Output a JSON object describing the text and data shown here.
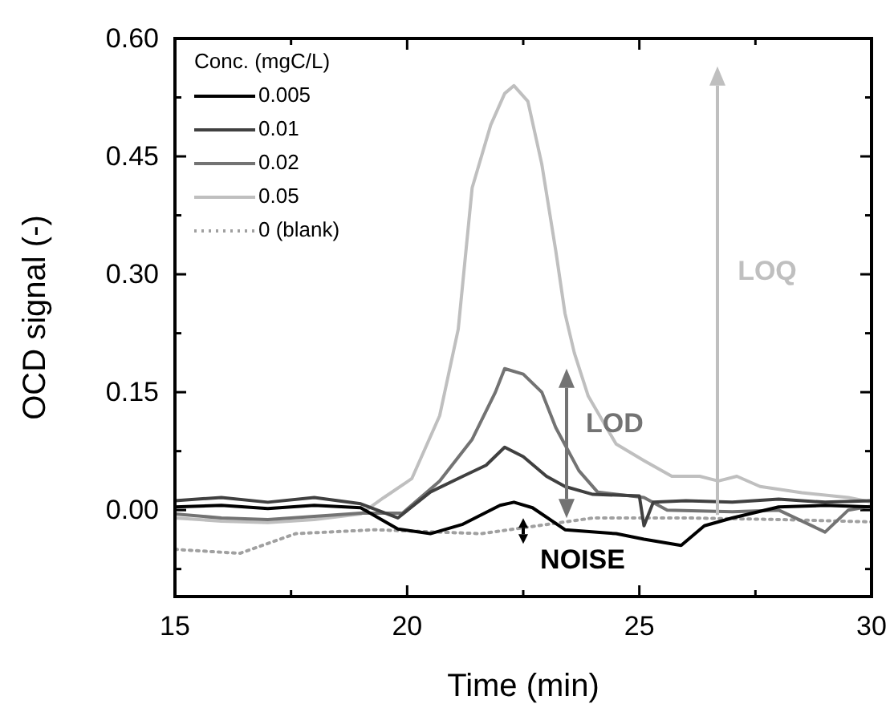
{
  "chart_data": {
    "type": "line",
    "xlabel": "Time (min)",
    "ylabel": "OCD signal (-)",
    "legend_title": "Conc. (mgC/L)",
    "legend": "top left",
    "xlim": [
      15,
      30
    ],
    "ylim": [
      -0.11,
      0.6
    ],
    "xticks": [
      15,
      {
        "value": 17.5,
        "label": null
      },
      20,
      {
        "value": 22.5,
        "label": null
      },
      25,
      {
        "value": 27.5,
        "label": null
      },
      30
    ],
    "yticks": [
      {
        "value": -0.075,
        "label": null
      },
      {
        "value": 0,
        "label": "0.00"
      },
      {
        "value": 0.075,
        "label": null
      },
      {
        "value": 0.15,
        "label": "0.15"
      },
      {
        "value": 0.225,
        "label": null
      },
      {
        "value": 0.3,
        "label": "0.30"
      },
      {
        "value": 0.375,
        "label": null
      },
      {
        "value": 0.45,
        "label": "0.45"
      },
      {
        "value": 0.525,
        "label": null
      },
      {
        "value": 0.6,
        "label": "0.60"
      }
    ],
    "grid": false,
    "series": [
      {
        "name": "0.005",
        "color": "#000000",
        "x": [
          15,
          16,
          17,
          18,
          19,
          19.8,
          20.5,
          21.2,
          22,
          22.3,
          22.7,
          23.4,
          24.5,
          25.1,
          25.9,
          26.4,
          27,
          28,
          29,
          30
        ],
        "values": [
          0.004,
          0.006,
          0.002,
          0.006,
          0.003,
          -0.024,
          -0.03,
          -0.018,
          0.006,
          0.01,
          0.003,
          -0.025,
          -0.03,
          -0.037,
          -0.045,
          -0.02,
          -0.01,
          0.004,
          0.006,
          0.004
        ]
      },
      {
        "name": "0.01",
        "color": "#404040",
        "x": [
          15,
          16,
          17,
          18,
          19,
          19.8,
          20.5,
          21.2,
          21.7,
          22.1,
          22.5,
          23,
          23.4,
          24,
          25,
          25.1,
          25.3,
          26,
          27,
          28,
          29,
          30
        ],
        "values": [
          0.012,
          0.016,
          0.01,
          0.016,
          0.008,
          -0.01,
          0.023,
          0.043,
          0.057,
          0.08,
          0.068,
          0.043,
          0.03,
          0.02,
          0.018,
          -0.02,
          0.01,
          0.012,
          0.01,
          0.014,
          0.01,
          0.012
        ]
      },
      {
        "name": "0.02",
        "color": "#737373",
        "x": [
          15,
          16,
          17,
          18,
          19,
          19.9,
          20.7,
          21.4,
          21.9,
          22.1,
          22.5,
          22.9,
          23.2,
          23.7,
          24.1,
          25.1,
          25.6,
          27,
          28,
          29,
          29.5,
          30
        ],
        "values": [
          -0.005,
          -0.01,
          -0.012,
          -0.008,
          -0.004,
          -0.004,
          0.037,
          0.09,
          0.15,
          0.18,
          0.173,
          0.15,
          0.105,
          0.05,
          0.023,
          0.016,
          0.0,
          -0.002,
          0.0,
          -0.028,
          0.0,
          0.005
        ]
      },
      {
        "name": "0.05",
        "color": "#bfbfbf",
        "x": [
          15,
          16,
          17,
          18,
          19,
          19.5,
          20.1,
          20.7,
          21.1,
          21.4,
          21.8,
          22.1,
          22.3,
          22.6,
          22.9,
          23.2,
          23.4,
          23.6,
          23.9,
          24.5,
          25.1,
          25.7,
          26.3,
          26.7,
          27.1,
          27.6,
          28.5,
          29.5,
          30
        ],
        "values": [
          -0.01,
          -0.014,
          -0.016,
          -0.012,
          -0.005,
          0.016,
          0.04,
          0.12,
          0.23,
          0.41,
          0.49,
          0.53,
          0.54,
          0.52,
          0.44,
          0.33,
          0.25,
          0.2,
          0.145,
          0.084,
          0.063,
          0.043,
          0.043,
          0.037,
          0.043,
          0.03,
          0.022,
          0.016,
          0.01
        ]
      },
      {
        "name": "0 (blank)",
        "color": "#a0a0a0",
        "line_style": "dotted",
        "x": [
          15,
          16.4,
          17.6,
          19.3,
          21.6,
          24,
          26,
          28,
          30
        ],
        "values": [
          -0.05,
          -0.055,
          -0.03,
          -0.025,
          -0.03,
          -0.01,
          -0.01,
          -0.012,
          -0.015
        ]
      }
    ],
    "annotations": [
      "LOD",
      "LOQ",
      "NOISE"
    ]
  }
}
